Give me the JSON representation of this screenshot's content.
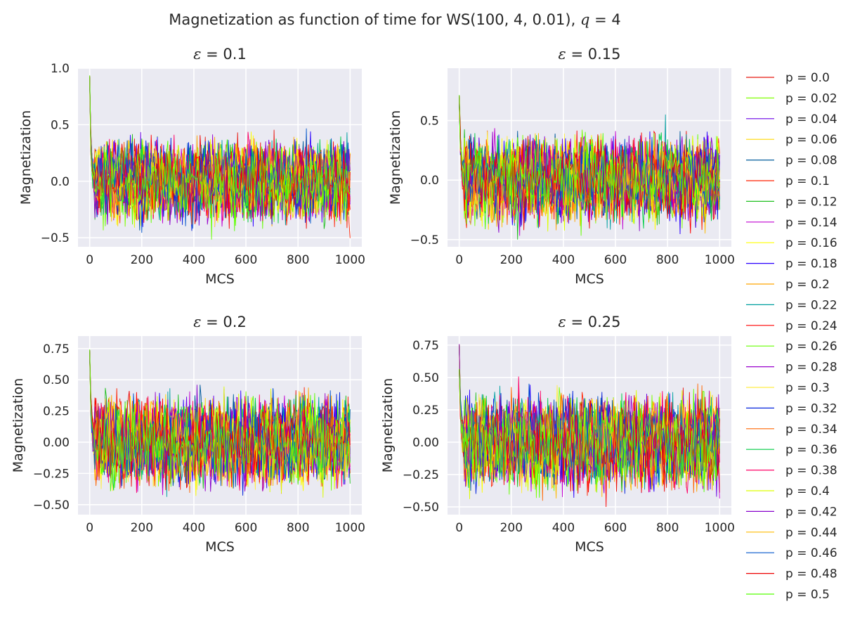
{
  "figure": {
    "title_prefix": "Magnetization as function of time for WS(100, 4, 0.01), ",
    "title_q_symbol": "q",
    "title_q_value": " = 4"
  },
  "chart_data": [
    {
      "type": "line",
      "title_symbol": "ε",
      "title_value": " = 0.1",
      "xlabel": "MCS",
      "ylabel": "Magnetization",
      "xlim": [
        -45,
        1045
      ],
      "ylim": [
        -0.58,
        1.0
      ],
      "xticks": [
        0,
        200,
        400,
        600,
        800,
        1000
      ],
      "yticks": [
        -0.5,
        0.0,
        0.5,
        1.0
      ],
      "ytick_labels": [
        "−0.5",
        "0.0",
        "0.5",
        "1.0"
      ],
      "grid": true,
      "y_start_peak": 0.94,
      "y_range": [
        -0.52,
        0.5
      ]
    },
    {
      "type": "line",
      "title_symbol": "ε",
      "title_value": " = 0.15",
      "xlabel": "MCS",
      "ylabel": "Magnetization",
      "xlim": [
        -45,
        1045
      ],
      "ylim": [
        -0.56,
        0.94
      ],
      "xticks": [
        0,
        200,
        400,
        600,
        800,
        1000
      ],
      "yticks": [
        -0.5,
        0.0,
        0.5
      ],
      "ytick_labels": [
        "−0.5",
        "0.0",
        "0.5"
      ],
      "grid": true,
      "y_start_peak": 0.88,
      "y_range": [
        -0.5,
        0.56
      ]
    },
    {
      "type": "line",
      "title_symbol": "ε",
      "title_value": " = 0.2",
      "xlabel": "MCS",
      "ylabel": "Magnetization",
      "xlim": [
        -45,
        1045
      ],
      "ylim": [
        -0.58,
        0.85
      ],
      "xticks": [
        0,
        200,
        400,
        600,
        800,
        1000
      ],
      "yticks": [
        -0.5,
        -0.25,
        0.0,
        0.25,
        0.5,
        0.75
      ],
      "ytick_labels": [
        "−0.50",
        "−0.25",
        "0.00",
        "0.25",
        "0.50",
        "0.75"
      ],
      "grid": true,
      "y_start_peak": 0.8,
      "y_range": [
        -0.52,
        0.46
      ]
    },
    {
      "type": "line",
      "title_symbol": "ε",
      "title_value": " = 0.25",
      "xlabel": "MCS",
      "ylabel": "Magnetization",
      "xlim": [
        -45,
        1045
      ],
      "ylim": [
        -0.56,
        0.82
      ],
      "xticks": [
        0,
        200,
        400,
        600,
        800,
        1000
      ],
      "yticks": [
        -0.5,
        -0.25,
        0.0,
        0.25,
        0.5,
        0.75
      ],
      "ytick_labels": [
        "−0.50",
        "−0.25",
        "0.00",
        "0.25",
        "0.50",
        "0.75"
      ],
      "grid": true,
      "y_start_peak": 0.76,
      "y_range": [
        -0.5,
        0.52
      ]
    }
  ],
  "legend": {
    "placement": "right",
    "entries": [
      {
        "label": "p = 0.0",
        "color": "#e8170f"
      },
      {
        "label": "p = 0.02",
        "color": "#7fff00"
      },
      {
        "label": "p = 0.04",
        "color": "#6a00e6"
      },
      {
        "label": "p = 0.06",
        "color": "#ffd700"
      },
      {
        "label": "p = 0.08",
        "color": "#005a9c"
      },
      {
        "label": "p = 0.1",
        "color": "#ff2200"
      },
      {
        "label": "p = 0.12",
        "color": "#1fbf1f"
      },
      {
        "label": "p = 0.14",
        "color": "#c000d0"
      },
      {
        "label": "p = 0.16",
        "color": "#ffff00"
      },
      {
        "label": "p = 0.18",
        "color": "#2a00ff"
      },
      {
        "label": "p = 0.2",
        "color": "#ffa500"
      },
      {
        "label": "p = 0.22",
        "color": "#00a0a0"
      },
      {
        "label": "p = 0.24",
        "color": "#ff0000"
      },
      {
        "label": "p = 0.26",
        "color": "#66ff00"
      },
      {
        "label": "p = 0.28",
        "color": "#9900cc"
      },
      {
        "label": "p = 0.3",
        "color": "#ffee44"
      },
      {
        "label": "p = 0.32",
        "color": "#0022dd"
      },
      {
        "label": "p = 0.34",
        "color": "#ff6600"
      },
      {
        "label": "p = 0.36",
        "color": "#00cc44"
      },
      {
        "label": "p = 0.38",
        "color": "#ff0066"
      },
      {
        "label": "p = 0.4",
        "color": "#ddff00"
      },
      {
        "label": "p = 0.42",
        "color": "#8800cc"
      },
      {
        "label": "p = 0.44",
        "color": "#ffbb00"
      },
      {
        "label": "p = 0.46",
        "color": "#0055cc"
      },
      {
        "label": "p = 0.48",
        "color": "#ee0000"
      },
      {
        "label": "p = 0.5",
        "color": "#55ff00"
      }
    ]
  }
}
